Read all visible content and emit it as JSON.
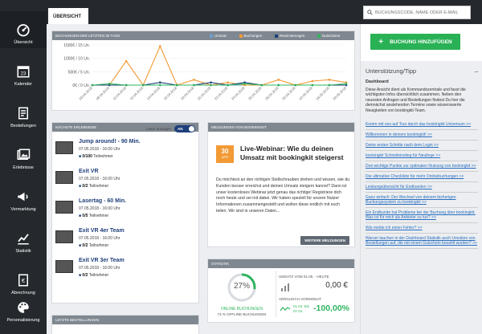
{
  "nav": [
    {
      "label": "Übersicht",
      "icon": "dashboard-icon"
    },
    {
      "label": "Kalender",
      "icon": "calendar-icon"
    },
    {
      "label": "Bestellungen",
      "icon": "orders-icon"
    },
    {
      "label": "Erlebnisse",
      "icon": "experiences-icon"
    },
    {
      "label": "Vermarktung",
      "icon": "marketing-icon"
    },
    {
      "label": "Statistik",
      "icon": "statistics-icon"
    },
    {
      "label": "Abrechnung",
      "icon": "billing-icon"
    },
    {
      "label": "Personalisierung",
      "icon": "personalization-icon"
    }
  ],
  "calendar_day": "23",
  "topbar": {
    "tab": "ÜBERSICHT",
    "search_placeholder": "BUCHUNGSCODE, NAME ODER E-MAIL"
  },
  "bookings_chart": {
    "header": "BUCHUNGEN DER LETZTEN 30 TAGE",
    "legend": {
      "umsatz": "Umsatz",
      "buchungen": "Buchungen",
      "reservierungen": "Reservierungen",
      "gutscheine": "Gutscheine"
    }
  },
  "chart_data": {
    "type": "line",
    "title": "BUCHUNGEN DER LETZTEN 30 TAGE",
    "ylim": [
      0,
      1500
    ],
    "y_ticks": [
      "1500€ / 15 Un.",
      "1000€ / 10 Un.",
      "500€ / 5 Un.",
      "0€ / 0 Un."
    ],
    "categories": [
      "06.04.2018",
      "08.04.2018",
      "10.04.2018",
      "12.04.2018",
      "14.04.2018",
      "16.04.2018",
      "18.04.2018",
      "20.04.2018",
      "22.04.2018",
      "24.04.2018",
      "26.04.2018",
      "28.04.2018",
      "30.04.2018",
      "02.05.2018",
      "04.05.2018",
      "06.05.2018"
    ],
    "series": [
      {
        "name": "Umsatz",
        "color": "#6f9fd4",
        "values": [
          0,
          0,
          0,
          0,
          0,
          0,
          0,
          0,
          0,
          0,
          0,
          0,
          0,
          0,
          0,
          0
        ]
      },
      {
        "name": "Buchungen",
        "color": "#f29a35",
        "values": [
          0,
          0,
          900,
          0,
          1450,
          0,
          200,
          0,
          100,
          0,
          0,
          200,
          0,
          150,
          200,
          100
        ]
      },
      {
        "name": "Reservierungen",
        "color": "#1f3f7a",
        "values": [
          0,
          0,
          0,
          0,
          100,
          0,
          0,
          100,
          0,
          100,
          0,
          0,
          0,
          0,
          0,
          0
        ]
      },
      {
        "name": "Gutscheine",
        "color": "#2eb55d",
        "values": [
          0,
          50,
          0,
          0,
          0,
          0,
          0,
          0,
          0,
          50,
          0,
          0,
          0,
          0,
          0,
          50
        ]
      }
    ]
  },
  "events": {
    "header": "NÄCHSTE ERLEBNISSE",
    "toggle_label": "Leere anzeigen",
    "toggle_state": "AN",
    "participants_label": "Teilnehmer",
    "items": [
      {
        "title": "Jump around! - 90 Min.",
        "date": "07.05.2018 - 16:00 Uhr",
        "count": "0/100"
      },
      {
        "title": "Exit VR",
        "date": "07.05.2018 - 16:00 Uhr",
        "count": "0/2"
      },
      {
        "title": "Lasertag - 60 Min.",
        "date": "07.05.2018 - 16:00 Uhr",
        "count": "0/5"
      },
      {
        "title": "Exit VR 4er Team",
        "date": "07.05.2018 - 16:00 Uhr",
        "count": "0/2"
      },
      {
        "title": "Exit VR 3er Team",
        "date": "07.05.2018 - 16:00 Uhr",
        "count": "0/2"
      }
    ]
  },
  "news": {
    "header": "MELDUNGEN VON BOOKINGKIT",
    "date_day": "30",
    "date_month": "APR",
    "title": "Live-Webinar: Wie du deinen Umsatz mit bookingkit steigerst",
    "body": "Du möchtest an den richtigen Stellschrauben drehen und wissen, wie du Kunden besser erreichst und deinen Umsatz steigern kannst? Dann ist unser kostenloses Webinar jetzt genau das richtige! Registriere dich noch heute und sei mit dabei. Wir haben speziell für unsere Nutzer Informationen zusammengestellt und wollen diese endlich mit euch teilen. Wir sind in unseren Daten...",
    "more_button": "WEITERE MELDUNGEN"
  },
  "stats": {
    "header": "STATISTIK",
    "percent": "27%",
    "percent_value": 27,
    "online_label": "ONLINE BUCHUNGEN",
    "online_sub": "73 % OFFLINE BUCHUNGEN",
    "revenue_label": "UMSATZ VOM 01.05. - HEUTE",
    "revenue_value": "0,00 €",
    "compare_label": "VERGLEICH VORMONAT",
    "compare_dates_from": "01.04. Bis",
    "compare_dates_to": "07.04.",
    "compare_value": "-100,00%"
  },
  "last_orders": {
    "header": "LETZTE BESTELLUNGEN"
  },
  "right": {
    "book_button": "BUCHUNG HINZUFÜGEN",
    "support_title": "Unterstützung/Tipp",
    "support_sub": "Dashboard",
    "support_text": "Diese Ansicht dient als Kommandozentrale und fasst die wichtigsten Infos übersichtlich zusammen. Neben den neuesten Anfragen und Bestellungen findest Du hier die demnächst anstehenden Termine sowie wissenswerte Neuigkeiten von bookingkit-Team.",
    "links": [
      "Komm mit uns auf Tour durch das bookingkit Universum >>",
      "Willkommen in deinem bookingkit! >>",
      "Deine ersten Schritte nach dem Login >>",
      "bookingkit Schnelleinstieg für Neulinge >>",
      "Drei wichtige Punkte zur optimalen Nutzung von bookingkit >>",
      "Die ultimative Checkliste für mehr Onlinebuchungen >>",
      "Leistungsübersicht für Endkunden >>",
      "Ganz einfach: Der Wechsel von deinem bisherigen Buchungssystem zu bookingkit >>",
      "Ein Endkunde hat Probleme bei der Buchung über bookingkit. Was ist für mich als Anbieter zu tun? >>",
      "Wie melde ich einen Fehler? >>",
      "Warum tauchen in der Dashboard Statistik auch Umsätze von Bestellungen auf, die mit einem Gutschein bezahlt wurden? >>"
    ]
  }
}
